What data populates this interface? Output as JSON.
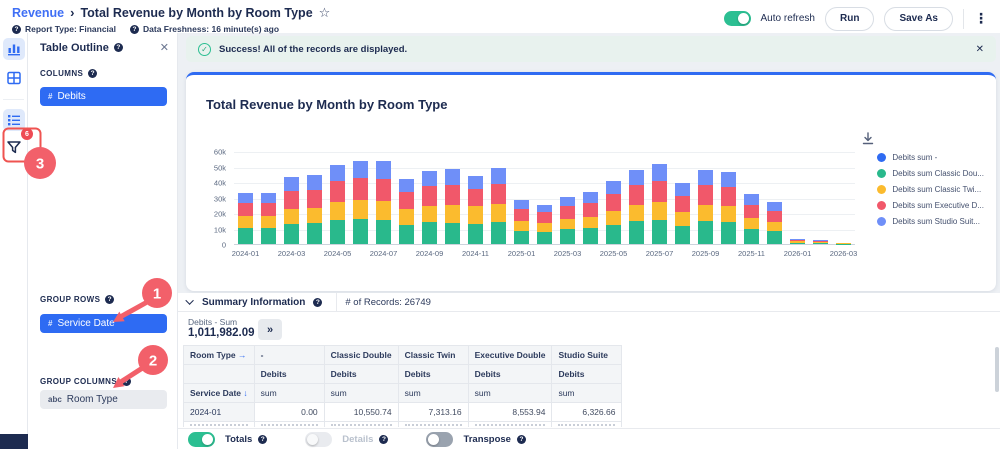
{
  "header": {
    "breadcrumb_root": "Revenue",
    "title": "Total Revenue by Month by Room Type",
    "report_type": "Report Type: Financial",
    "data_freshness": "Data Freshness: 16 minute(s) ago",
    "auto_refresh_label": "Auto refresh",
    "run_label": "Run",
    "save_as_label": "Save As"
  },
  "sidebar": {
    "filter_badge": "6"
  },
  "panel": {
    "title": "Table Outline",
    "columns_label": "COLUMNS",
    "columns_chip_prefix": "#",
    "columns_chip": "Debits",
    "group_rows_label": "GROUP ROWS",
    "group_rows_chip_prefix": "#",
    "group_rows_chip": "Service Date",
    "group_columns_label": "GROUP COLUMNS",
    "group_columns_chip_prefix": "abc",
    "group_columns_chip": "Room Type"
  },
  "banner": {
    "text": "Success! All of the records are displayed."
  },
  "chart_data": {
    "type": "bar",
    "stacked": true,
    "title": "Total Revenue by Month by Room Type",
    "xlabel": "",
    "ylabel": "",
    "ylim": [
      0,
      60000
    ],
    "y_ticks": [
      0,
      10000,
      20000,
      30000,
      40000,
      50000,
      60000
    ],
    "y_tick_labels": [
      "0",
      "10k",
      "20k",
      "30k",
      "40k",
      "50k",
      "60k"
    ],
    "x_tick_interval": 2,
    "grid": true,
    "legend_position": "right",
    "categories": [
      "2024-01",
      "2024-02",
      "2024-03",
      "2024-04",
      "2024-05",
      "2024-06",
      "2024-07",
      "2024-08",
      "2024-09",
      "2024-10",
      "2024-11",
      "2024-12",
      "2025-01",
      "2025-02",
      "2025-03",
      "2025-04",
      "2025-05",
      "2025-06",
      "2025-07",
      "2025-08",
      "2025-09",
      "2025-10",
      "2025-11",
      "2025-12",
      "2026-01",
      "2026-02",
      "2026-03"
    ],
    "series": [
      {
        "name": "Debits sum -",
        "legend_label": "Debits sum -",
        "color": "#2f6bf2",
        "values": [
          0,
          0,
          0,
          0,
          0,
          0,
          0,
          0,
          0,
          0,
          0,
          0,
          0,
          0,
          0,
          0,
          0,
          0,
          0,
          0,
          0,
          0,
          0,
          0,
          0,
          0,
          0
        ]
      },
      {
        "name": "Debits sum Classic Double",
        "legend_label": "Debits sum Classic Dou...",
        "color": "#29b98c",
        "values": [
          10550.74,
          10200,
          12800,
          13500,
          15400,
          16000,
          15800,
          12300,
          14300,
          13600,
          12900,
          14300,
          8300,
          8000,
          9500,
          10100,
          12400,
          14700,
          15600,
          11700,
          14600,
          13900,
          9400,
          8200,
          900,
          800,
          300
        ]
      },
      {
        "name": "Debits sum Classic Twin",
        "legend_label": "Debits sum Classic Twi...",
        "color": "#fbbb2e",
        "values": [
          7313.16,
          7600,
          9700,
          9800,
          11900,
          12300,
          11900,
          10300,
          10500,
          11700,
          11800,
          11500,
          6500,
          5600,
          6700,
          7500,
          9000,
          10600,
          11500,
          8900,
          10400,
          10500,
          7300,
          6000,
          800,
          600,
          100
        ]
      },
      {
        "name": "Debits sum Executive Double",
        "legend_label": "Debits sum Executive D...",
        "color": "#f1586a",
        "values": [
          8553.94,
          8600,
          11800,
          11600,
          13400,
          14200,
          14500,
          10800,
          12400,
          12700,
          10900,
          13000,
          7700,
          6800,
          8200,
          9000,
          10600,
          12600,
          13500,
          10500,
          12800,
          12300,
          8600,
          7200,
          900,
          700,
          100
        ]
      },
      {
        "name": "Debits sum Studio Suite",
        "legend_label": "Debits sum Studio Suit...",
        "color": "#6f8ff8",
        "values": [
          6326.66,
          6500,
          9200,
          9400,
          10300,
          11000,
          11300,
          8600,
          9800,
          10500,
          8400,
          10200,
          6000,
          5100,
          6100,
          6900,
          8500,
          10100,
          10900,
          8400,
          9700,
          9800,
          6700,
          5600,
          600,
          500,
          100
        ]
      }
    ]
  },
  "summary": {
    "section_label": "Summary Information",
    "records_label": "# of Records: 26749",
    "metric_label": "Debits - Sum",
    "metric_value": "1,011,982.09",
    "table": {
      "corner_label": "Room Type",
      "row_dim_label": "Service Date",
      "col_groups": [
        "-",
        "Classic Double",
        "Classic Twin",
        "Executive Double",
        "Studio Suite"
      ],
      "measure_label": "Debits",
      "agg_label": "sum",
      "rows": [
        {
          "label": "2024-01",
          "values": [
            "0.00",
            "10,550.74",
            "7,313.16",
            "8,553.94",
            "6,326.66"
          ]
        }
      ]
    }
  },
  "footer": {
    "totals_label": "Totals",
    "details_label": "Details",
    "transpose_label": "Transpose"
  },
  "annotations": {
    "step1": "1",
    "step2": "2",
    "step3": "3",
    "color": "#f2606a"
  }
}
